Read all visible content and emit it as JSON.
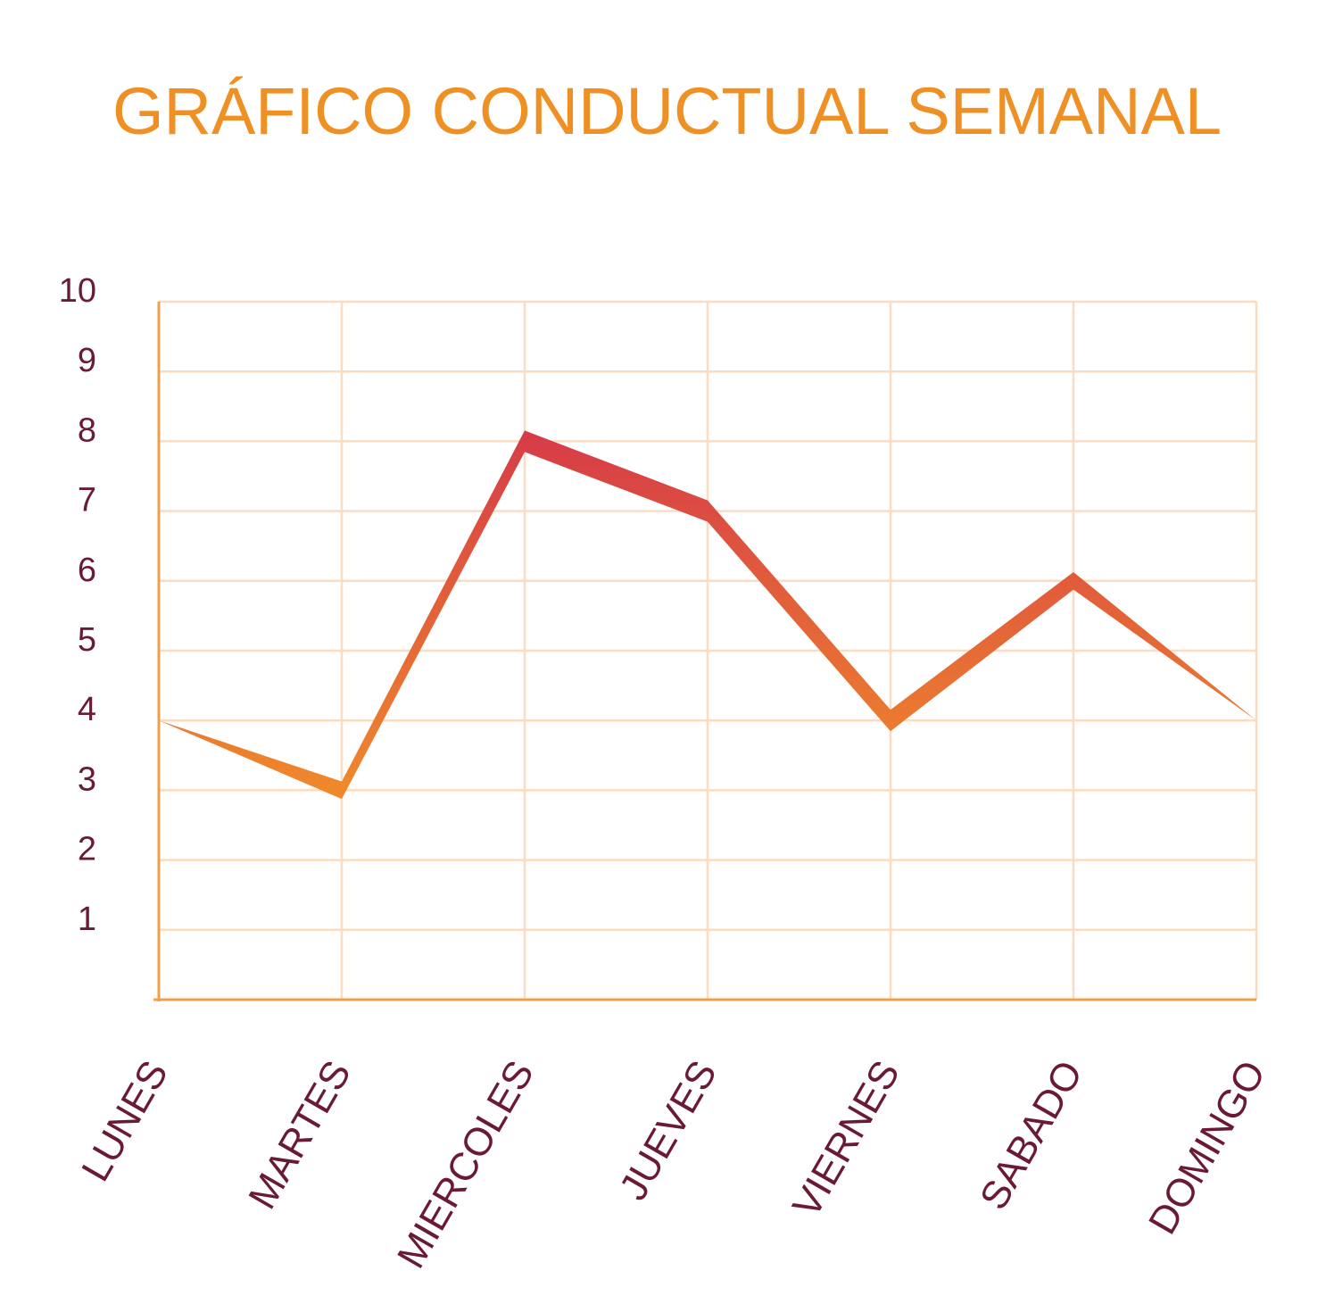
{
  "chart_data": {
    "type": "line",
    "title": "GRÁFICO CONDUCTUAL SEMANAL",
    "xlabel": "",
    "ylabel": "",
    "categories": [
      "LUNES",
      "MARTES",
      "MIERCOLES",
      "JUEVES",
      "VIERNES",
      "SABADO",
      "DOMINGO"
    ],
    "values": [
      4,
      3,
      8,
      7,
      4,
      6,
      4
    ],
    "ylim": [
      1,
      10
    ],
    "yticks": [
      "1",
      "2",
      "3",
      "4",
      "5",
      "6",
      "7",
      "8",
      "9",
      "10"
    ],
    "grid": true,
    "legend": "none"
  },
  "colors": {
    "title": "#ee9023",
    "axis": "#f0a04a",
    "grid": "#fbdcc0",
    "labels": "#6a1a35",
    "line_start": "#f08a2a",
    "line_end": "#d63b48"
  }
}
